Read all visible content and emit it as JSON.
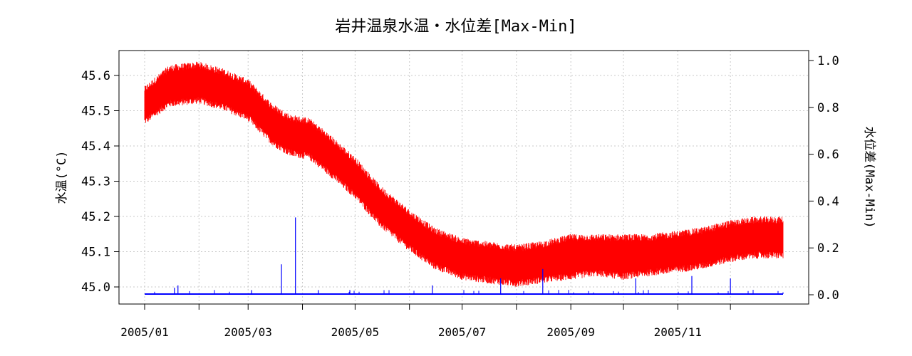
{
  "chart_data": {
    "type": "line",
    "title": "岩井温泉水温・水位差[Max-Min]",
    "ylabel_left": "水温(°C)",
    "ylabel_right": "水位差(Max-Min)",
    "grid": true,
    "x_range": [
      "2005-01-01",
      "2005-12-31"
    ],
    "y_left_range": [
      44.99,
      45.64
    ],
    "y_right_range": [
      0.0,
      1.0
    ],
    "y_left_ticks": [
      "45.0",
      "45.1",
      "45.2",
      "45.3",
      "45.4",
      "45.5",
      "45.6"
    ],
    "y_right_ticks": [
      "0.0",
      "0.2",
      "0.4",
      "0.6",
      "0.8",
      "1.0"
    ],
    "x_tick_dates": [
      "2005-01-01",
      "2005-02-01",
      "2005-03-01",
      "2005-04-01",
      "2005-05-01",
      "2005-06-01",
      "2005-07-01",
      "2005-08-01",
      "2005-09-01",
      "2005-10-01",
      "2005-11-01",
      "2005-12-01"
    ],
    "x_tick_labels": [
      "2005/01",
      "",
      "2005/03",
      "",
      "2005/05",
      "",
      "2005/07",
      "",
      "2005/09",
      "",
      "2005/11",
      ""
    ],
    "series": [
      {
        "axis": "left",
        "color": "#ff0000",
        "style": "band",
        "points": [
          {
            "x": "2005-01-01",
            "low": 45.47,
            "high": 45.56
          },
          {
            "x": "2005-01-15",
            "low": 45.52,
            "high": 45.62
          },
          {
            "x": "2005-02-01",
            "low": 45.53,
            "high": 45.63
          },
          {
            "x": "2005-02-15",
            "low": 45.51,
            "high": 45.61
          },
          {
            "x": "2005-03-01",
            "low": 45.48,
            "high": 45.58
          },
          {
            "x": "2005-03-15",
            "low": 45.41,
            "high": 45.51
          },
          {
            "x": "2005-03-25",
            "low": 45.38,
            "high": 45.48
          },
          {
            "x": "2005-04-05",
            "low": 45.37,
            "high": 45.47
          },
          {
            "x": "2005-04-15",
            "low": 45.33,
            "high": 45.43
          },
          {
            "x": "2005-05-01",
            "low": 45.26,
            "high": 45.36
          },
          {
            "x": "2005-05-15",
            "low": 45.18,
            "high": 45.28
          },
          {
            "x": "2005-06-01",
            "low": 45.11,
            "high": 45.21
          },
          {
            "x": "2005-06-15",
            "low": 45.06,
            "high": 45.16
          },
          {
            "x": "2005-07-01",
            "low": 45.03,
            "high": 45.13
          },
          {
            "x": "2005-07-15",
            "low": 45.02,
            "high": 45.12
          },
          {
            "x": "2005-08-01",
            "low": 45.01,
            "high": 45.11
          },
          {
            "x": "2005-08-15",
            "low": 45.02,
            "high": 45.12
          },
          {
            "x": "2005-09-01",
            "low": 45.03,
            "high": 45.14
          },
          {
            "x": "2005-09-15",
            "low": 45.04,
            "high": 45.14
          },
          {
            "x": "2005-10-01",
            "low": 45.03,
            "high": 45.14
          },
          {
            "x": "2005-10-15",
            "low": 45.04,
            "high": 45.14
          },
          {
            "x": "2005-11-01",
            "low": 45.05,
            "high": 45.15
          },
          {
            "x": "2005-11-15",
            "low": 45.06,
            "high": 45.16
          },
          {
            "x": "2005-12-01",
            "low": 45.08,
            "high": 45.18
          },
          {
            "x": "2005-12-15",
            "low": 45.09,
            "high": 45.19
          },
          {
            "x": "2005-12-31",
            "low": 45.09,
            "high": 45.19
          }
        ]
      },
      {
        "axis": "right",
        "color": "#0000ff",
        "style": "spikes",
        "baseline": 0.003,
        "points": [
          {
            "x": "2005-01-18",
            "y": 0.03
          },
          {
            "x": "2005-01-20",
            "y": 0.04
          },
          {
            "x": "2005-03-03",
            "y": 0.02
          },
          {
            "x": "2005-03-20",
            "y": 0.13
          },
          {
            "x": "2005-03-28",
            "y": 0.33
          },
          {
            "x": "2005-04-10",
            "y": 0.02
          },
          {
            "x": "2005-04-28",
            "y": 0.02
          },
          {
            "x": "2005-06-14",
            "y": 0.04
          },
          {
            "x": "2005-07-23",
            "y": 0.07
          },
          {
            "x": "2005-08-16",
            "y": 0.11
          },
          {
            "x": "2005-10-08",
            "y": 0.07
          },
          {
            "x": "2005-11-09",
            "y": 0.08
          },
          {
            "x": "2005-12-01",
            "y": 0.07
          }
        ]
      }
    ]
  }
}
